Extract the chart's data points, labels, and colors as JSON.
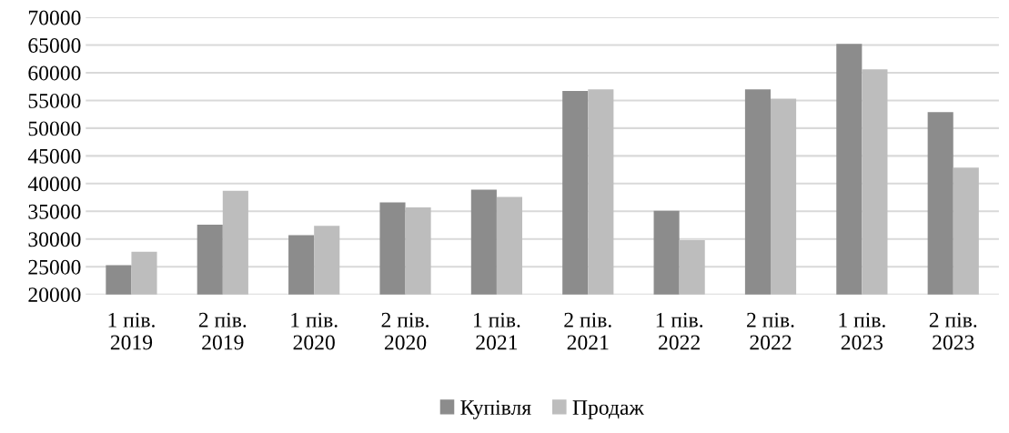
{
  "chart_data": {
    "type": "bar",
    "categories": [
      "1 пів.\n2019",
      "2 пів.\n2019",
      "1 пів.\n2020",
      "2 пів.\n2020",
      "1 пів.\n2021",
      "2 пів.\n2021",
      "1 пів.\n2022",
      "2 пів.\n2022",
      "1 пів.\n2023",
      "2 пів.\n2023"
    ],
    "series": [
      {
        "name": "Купівля",
        "color": "#8c8c8c",
        "values": [
          25300,
          32600,
          30700,
          36600,
          38900,
          56700,
          35100,
          57000,
          65200,
          52900
        ]
      },
      {
        "name": "Продаж",
        "color": "#bdbdbd",
        "values": [
          27700,
          38700,
          32400,
          35700,
          37600,
          57000,
          29800,
          55300,
          60600,
          42900
        ]
      }
    ],
    "ylim": [
      20000,
      70000
    ],
    "yticks": [
      20000,
      25000,
      30000,
      35000,
      40000,
      45000,
      50000,
      55000,
      60000,
      65000,
      70000
    ],
    "grid": "y",
    "legend": "bottom"
  }
}
